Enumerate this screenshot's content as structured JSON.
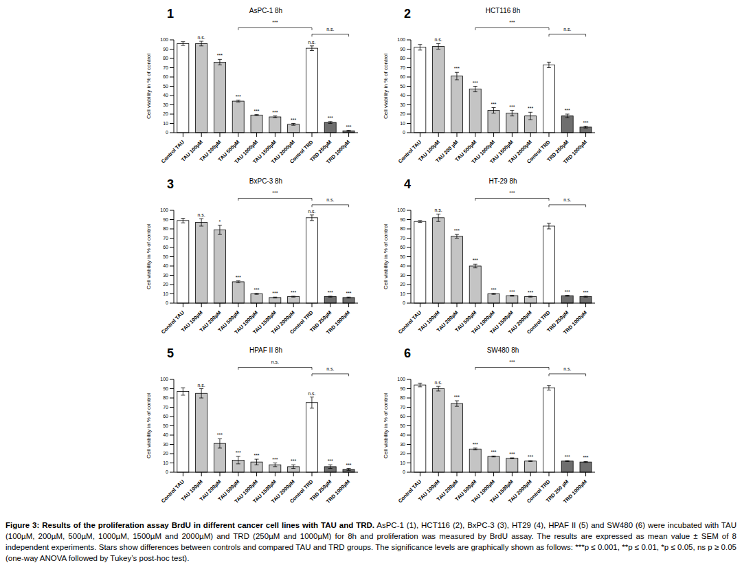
{
  "chart_data": [
    {
      "type": "bar",
      "panel": "1",
      "title": "AsPC-1 8h",
      "ylabel": "Cell viability in % of control",
      "categories": [
        "Control TAU",
        "TAU 100µM",
        "TAU 200µM",
        "TAU 500µM",
        "TAU 1000µM",
        "TAU 1500µM",
        "TAU 2000µM",
        "Control TRD",
        "TRD 250µM",
        "TRD 1000µM"
      ],
      "values": [
        96,
        96,
        76,
        34,
        19,
        17,
        9,
        91,
        11,
        2
      ],
      "errors": [
        2,
        2.5,
        3,
        1,
        0.5,
        1,
        1,
        2.5,
        1,
        0.5
      ],
      "significance": [
        null,
        "n.s.",
        "***",
        "***",
        "***",
        "***",
        "***",
        "n.s.",
        "***",
        "***"
      ],
      "colors": [
        "#ffffff",
        "#c4c4c4",
        "#c4c4c4",
        "#c4c4c4",
        "#c4c4c4",
        "#c4c4c4",
        "#c4c4c4",
        "#ffffff",
        "#6e6e6e",
        "#6e6e6e"
      ],
      "comparisons": [
        {
          "from": "TAU 500µM",
          "to": "Control TRD",
          "label": "***"
        },
        {
          "from": "Control TRD",
          "to": "TRD 1000µM",
          "label": "n.s."
        }
      ],
      "ylim": [
        0,
        100
      ],
      "yticks": [
        0,
        10,
        20,
        30,
        40,
        50,
        60,
        70,
        80,
        90,
        100
      ]
    },
    {
      "type": "bar",
      "panel": "2",
      "title": "HCT116 8h",
      "ylabel": "Cell viability in % of control",
      "categories": [
        "Control TAU",
        "TAU 100µM",
        "TAU 200 µM",
        "TAU 500µM",
        "TAU 1000µM",
        "TAU 1500µM",
        "TAU 2000µM",
        "Control TRD",
        "TRD 250µM",
        "TRD 1000µM"
      ],
      "values": [
        92,
        93,
        61,
        47,
        24,
        21,
        18,
        73,
        18,
        6
      ],
      "errors": [
        3,
        3,
        4,
        3,
        3,
        3,
        4,
        3,
        2,
        1
      ],
      "significance": [
        null,
        "n.s.",
        "***",
        "***",
        "***",
        "***",
        "***",
        null,
        "***",
        "***"
      ],
      "colors": [
        "#ffffff",
        "#c4c4c4",
        "#c4c4c4",
        "#c4c4c4",
        "#c4c4c4",
        "#c4c4c4",
        "#c4c4c4",
        "#ffffff",
        "#6e6e6e",
        "#6e6e6e"
      ],
      "comparisons": [
        {
          "from": "TAU 500µM",
          "to": "Control TRD",
          "label": "***"
        },
        {
          "from": "Control TRD",
          "to": "TRD 1000µM",
          "label": "n.s."
        }
      ],
      "ylim": [
        0,
        100
      ],
      "yticks": [
        0,
        10,
        20,
        30,
        40,
        50,
        60,
        70,
        80,
        90,
        100
      ]
    },
    {
      "type": "bar",
      "panel": "3",
      "title": "BxPC-3 8h",
      "ylabel": "Cell viability in % of control",
      "categories": [
        "Control TAU",
        "TAU 100µM",
        "TAU 200µM",
        "TAU 500µM",
        "TAU 1000µM",
        "TAU 1500µM",
        "TAU 2000µM",
        "Control TRD",
        "TRD 250µM",
        "TRD 1000µM"
      ],
      "values": [
        89,
        87,
        79,
        23,
        10,
        6,
        7,
        92,
        7,
        6
      ],
      "errors": [
        2.5,
        4,
        5,
        1,
        0.5,
        0.5,
        0.5,
        3,
        0.5,
        0.5
      ],
      "significance": [
        null,
        "n.s.",
        "*",
        "***",
        "***",
        "***",
        "***",
        "n.s.",
        "***",
        "***"
      ],
      "colors": [
        "#ffffff",
        "#c4c4c4",
        "#c4c4c4",
        "#c4c4c4",
        "#c4c4c4",
        "#c4c4c4",
        "#c4c4c4",
        "#ffffff",
        "#6e6e6e",
        "#6e6e6e"
      ],
      "comparisons": [
        {
          "from": "TAU 500µM",
          "to": "Control TRD",
          "label": "***"
        },
        {
          "from": "Control TRD",
          "to": "TRD 1000µM",
          "label": "n.s."
        }
      ],
      "ylim": [
        0,
        100
      ],
      "yticks": [
        0,
        10,
        20,
        30,
        40,
        50,
        60,
        70,
        80,
        90,
        100
      ]
    },
    {
      "type": "bar",
      "panel": "4",
      "title": "HT-29 8h",
      "ylabel": "Cell viability in % of control",
      "categories": [
        "Control TAU",
        "TAU 100µM",
        "TAU 200µM",
        "TAU 500µM",
        "TAU 1000µM",
        "TAU 1500µM",
        "TAU 2000µM",
        "Control TRD",
        "TRD 250µM",
        "TRD 1000µM"
      ],
      "values": [
        88,
        92,
        72,
        40,
        10,
        8,
        7,
        83,
        8,
        7
      ],
      "errors": [
        1,
        4,
        2,
        2,
        0.5,
        0.5,
        0.5,
        3,
        0.5,
        0.5
      ],
      "significance": [
        null,
        "n.s.",
        "***",
        "***",
        "***",
        "***",
        "***",
        null,
        "***",
        "***"
      ],
      "colors": [
        "#ffffff",
        "#c4c4c4",
        "#c4c4c4",
        "#c4c4c4",
        "#c4c4c4",
        "#c4c4c4",
        "#c4c4c4",
        "#ffffff",
        "#6e6e6e",
        "#6e6e6e"
      ],
      "comparisons": [
        {
          "from": "TAU 500µM",
          "to": "Control TRD",
          "label": "***"
        },
        {
          "from": "Control TRD",
          "to": "TRD 1000µM",
          "label": "n.s."
        }
      ],
      "ylim": [
        0,
        100
      ],
      "yticks": [
        0,
        10,
        20,
        30,
        40,
        50,
        60,
        70,
        80,
        90,
        100
      ]
    },
    {
      "type": "bar",
      "panel": "5",
      "title": "HPAF II 8h",
      "ylabel": "Cell viability in % of control",
      "categories": [
        "Control TAU",
        "TAU 100µM",
        "TAU 200µM",
        "TAU 500µM",
        "TAU 1000µM",
        "TAU 1500µM",
        "TAU 2000µM",
        "Control TRD",
        "TRD 250µM",
        "TRD 1000µM"
      ],
      "values": [
        87,
        85,
        31,
        13,
        11,
        8,
        6,
        75,
        6,
        3
      ],
      "errors": [
        4,
        5,
        5,
        4,
        3,
        2,
        2,
        6,
        2,
        1
      ],
      "significance": [
        null,
        "n.s.",
        "***",
        "***",
        "***",
        "***",
        "***",
        "n.s.",
        "***",
        "***"
      ],
      "colors": [
        "#ffffff",
        "#c4c4c4",
        "#c4c4c4",
        "#c4c4c4",
        "#c4c4c4",
        "#c4c4c4",
        "#c4c4c4",
        "#ffffff",
        "#6e6e6e",
        "#6e6e6e"
      ],
      "comparisons": [
        {
          "from": "TAU 500µM",
          "to": "Control TRD",
          "label": "n.s."
        },
        {
          "from": "Control TRD",
          "to": "TRD 1000µM",
          "label": "n.s."
        }
      ],
      "ylim": [
        0,
        100
      ],
      "yticks": [
        0,
        10,
        20,
        30,
        40,
        50,
        60,
        70,
        80,
        90,
        100
      ]
    },
    {
      "type": "bar",
      "panel": "6",
      "title": "SW480 8h",
      "ylabel": "Cell viability in % of control",
      "categories": [
        "Control TAU",
        "TAU 100µM",
        "TAU 200µM",
        "TAU 500µM",
        "TAU 1000µM",
        "TAU 1500µM",
        "TAU 2000µM",
        "Control TRD",
        "TRD 250 µM",
        "TRD 1000µM"
      ],
      "values": [
        94,
        90,
        74,
        25,
        17,
        15,
        12,
        91,
        12,
        11
      ],
      "errors": [
        2,
        2.5,
        3,
        1,
        0.5,
        0.5,
        0.5,
        2.5,
        0.5,
        0.5
      ],
      "significance": [
        null,
        "n.s.",
        "***",
        "***",
        "***",
        "***",
        "***",
        null,
        "***",
        "***"
      ],
      "colors": [
        "#ffffff",
        "#c4c4c4",
        "#c4c4c4",
        "#c4c4c4",
        "#c4c4c4",
        "#c4c4c4",
        "#c4c4c4",
        "#ffffff",
        "#6e6e6e",
        "#6e6e6e"
      ],
      "comparisons": [
        {
          "from": "TAU 500µM",
          "to": "Control TRD",
          "label": "***"
        },
        {
          "from": "Control TRD",
          "to": "TRD 1000µM",
          "label": "n.s."
        }
      ],
      "ylim": [
        0,
        100
      ],
      "yticks": [
        0,
        10,
        20,
        30,
        40,
        50,
        60,
        70,
        80,
        90,
        100
      ]
    }
  ],
  "caption": {
    "title": "Figure 3: Results of the proliferation assay BrdU in different cancer cell lines with TAU and TRD.",
    "text": "AsPC-1 (1), HCT116 (2), BxPC-3 (3), HT29 (4), HPAF II (5) and SW480 (6) were incubated with TAU (100µM, 200µM, 500µM, 1000µM, 1500µM and 2000µM) and TRD (250µM and 1000µM)  for 8h and proliferation was measured by BrdU assay. The results are expressed as mean value ± SEM of 8 independent experiments. Stars show differences between controls and compared TAU and TRD groups. The significance levels are graphically shown as follows: ***p ≤ 0.001, **p ≤ 0.01, *p ≤ 0.05, ns p ≥ 0.05 (one-way ANOVA followed by Tukey’s post-hoc test)."
  }
}
